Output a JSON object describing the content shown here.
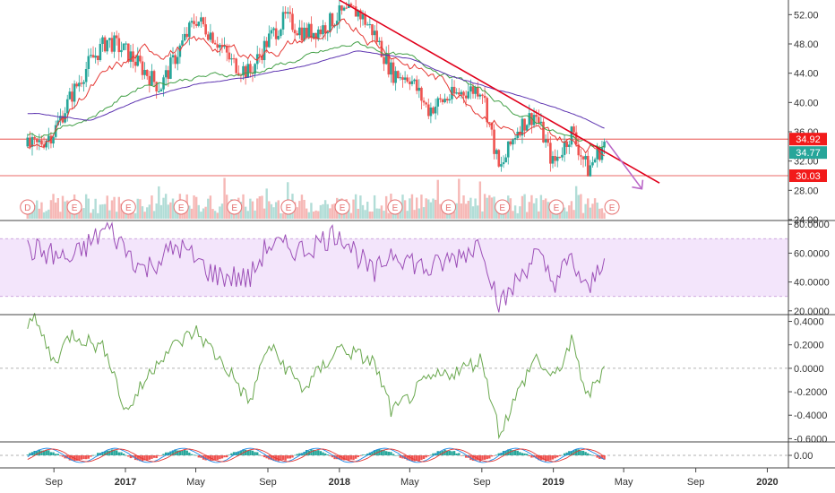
{
  "colors": {
    "up": "#26a69a",
    "down": "#ef5350",
    "ma_fast": "#e53935",
    "ma_mid": "#43a047",
    "ma_slow": "#5e35b1",
    "trendline": "#e0001b",
    "arrow": "#ba68c8",
    "rsi_line": "#9c4fb7",
    "rsi_band": "#f3e5fb",
    "momentum_line": "#6aa84f",
    "hline": "#e53935",
    "axis_text": "#333333",
    "grid_border": "#444444",
    "price_tag_red": "#f21b1b",
    "price_tag_green": "#26a69a",
    "earnings_circle": "#e57373"
  },
  "chart_data": [
    {
      "type": "candlestick",
      "panel": "price",
      "y_ticks": [
        "52.00",
        "48.00",
        "44.00",
        "40.00",
        "36.00",
        "32.00",
        "28.00",
        "24.00"
      ],
      "ylim": [
        24,
        54
      ],
      "series": [
        {
          "name": "",
          "kind": "candles",
          "x": [
            "2016-08",
            "2016-09",
            "2016-10",
            "2016-11",
            "2016-12",
            "2017-01",
            "2017-02",
            "2017-03",
            "2017-04",
            "2017-05",
            "2017-06",
            "2017-07",
            "2017-08",
            "2017-09",
            "2017-10",
            "2017-11",
            "2017-12",
            "2018-01",
            "2018-02",
            "2018-03",
            "2018-04",
            "2018-05",
            "2018-06",
            "2018-07",
            "2018-08",
            "2018-09",
            "2018-10",
            "2018-11",
            "2018-12",
            "2019-01",
            "2019-02",
            "2019-03",
            "2019-04"
          ],
          "values": [
            34.0,
            36.0,
            41.0,
            45.5,
            48.5,
            47.0,
            44.5,
            42.0,
            47.0,
            51.5,
            49.0,
            45.5,
            44.0,
            48.5,
            51.5,
            49.5,
            50.0,
            52.0,
            52.5,
            49.5,
            44.0,
            43.5,
            39.0,
            40.5,
            41.5,
            42.0,
            30.5,
            36.5,
            38.5,
            31.5,
            36.0,
            30.8,
            34.8
          ]
        },
        {
          "name": "",
          "kind": "moving_average",
          "x": [
            "2016-08",
            "2016-11",
            "2017-02",
            "2017-05",
            "2017-08",
            "2017-11",
            "2018-02",
            "2018-05",
            "2018-08",
            "2018-11",
            "2019-02",
            "2019-04"
          ],
          "values": [
            33.5,
            42.0,
            46.5,
            48.0,
            46.5,
            48.5,
            50.0,
            45.5,
            41.0,
            36.0,
            34.5,
            34.0
          ]
        },
        {
          "name": "",
          "kind": "moving_average",
          "x": [
            "2016-08",
            "2016-11",
            "2017-02",
            "2017-05",
            "2017-08",
            "2017-11",
            "2018-02",
            "2018-05",
            "2018-08",
            "2018-11",
            "2019-02",
            "2019-04"
          ],
          "values": [
            35.5,
            38.0,
            42.5,
            43.5,
            44.0,
            46.0,
            48.0,
            46.0,
            43.0,
            38.5,
            35.0,
            34.0
          ]
        },
        {
          "name": "",
          "kind": "moving_average",
          "x": [
            "2016-08",
            "2016-11",
            "2017-02",
            "2017-05",
            "2017-08",
            "2017-11",
            "2018-02",
            "2018-05",
            "2018-08",
            "2018-11",
            "2019-02",
            "2019-04"
          ],
          "values": [
            38.5,
            37.5,
            40.5,
            42.5,
            43.5,
            45.0,
            47.0,
            46.0,
            43.0,
            41.0,
            38.5,
            36.5
          ]
        }
      ],
      "trendline": {
        "x": [
          "2018-01",
          "2019-07"
        ],
        "values": [
          54.0,
          29.0
        ]
      },
      "horizontal_lines": [
        35.0,
        30.0
      ],
      "price_tags": [
        {
          "label": "34.92",
          "style": "red"
        },
        {
          "label": "34.77",
          "style": "green"
        },
        {
          "label": "30.03",
          "style": "red"
        }
      ],
      "event_markers": [
        "D",
        "E",
        "E",
        "E",
        "E",
        "E",
        "E",
        "E",
        "E",
        "E",
        "E",
        "E"
      ]
    },
    {
      "type": "line",
      "panel": "rsi",
      "y_ticks": [
        "80.0000",
        "60.0000",
        "40.0000",
        "20.0000"
      ],
      "ylim": [
        18,
        82
      ],
      "band": [
        30,
        70
      ],
      "series": [
        {
          "name": "",
          "x": [
            "2016-08",
            "2016-10",
            "2016-12",
            "2017-02",
            "2017-04",
            "2017-06",
            "2017-08",
            "2017-09",
            "2017-11",
            "2018-01",
            "2018-03",
            "2018-04",
            "2018-06",
            "2018-08",
            "2018-09",
            "2018-10",
            "2018-12",
            "2019-01",
            "2019-02",
            "2019-03",
            "2019-04"
          ],
          "values": [
            62,
            55,
            78,
            48,
            65,
            45,
            42,
            66,
            62,
            75,
            44,
            62,
            48,
            60,
            68,
            22,
            60,
            40,
            55,
            32,
            62
          ]
        }
      ]
    },
    {
      "type": "line",
      "panel": "momentum",
      "y_ticks": [
        "0.4000",
        "0.2000",
        "0.0000",
        "-0.2000",
        "-0.4000",
        "-0.6000"
      ],
      "ylim": [
        -0.62,
        0.45
      ],
      "series": [
        {
          "name": "",
          "x": [
            "2016-08",
            "2016-09",
            "2016-10",
            "2016-12",
            "2017-01",
            "2017-03",
            "2017-05",
            "2017-07",
            "2017-08",
            "2017-09",
            "2017-11",
            "2018-01",
            "2018-03",
            "2018-04",
            "2018-06",
            "2018-08",
            "2018-09",
            "2018-10",
            "2018-12",
            "2019-01",
            "2019-02",
            "2019-03",
            "2019-04"
          ],
          "values": [
            0.4,
            0.05,
            0.3,
            0.15,
            -0.38,
            0.1,
            0.32,
            -0.05,
            -0.3,
            0.2,
            -0.18,
            0.18,
            0.05,
            -0.38,
            -0.1,
            0.0,
            0.08,
            -0.55,
            0.1,
            -0.1,
            0.22,
            -0.25,
            0.05
          ]
        }
      ]
    },
    {
      "type": "histogram",
      "panel": "macd",
      "y_ticks": [
        "0.00"
      ],
      "ylim": [
        -0.8,
        0.8
      ]
    }
  ],
  "x_axis": {
    "labels": [
      "Sep",
      "2017",
      "May",
      "Sep",
      "2018",
      "May",
      "Sep",
      "2019",
      "May",
      "Sep",
      "2020"
    ],
    "dates": [
      "2016-09",
      "2017-01",
      "2017-05",
      "2017-09",
      "2018-01",
      "2018-05",
      "2018-09",
      "2019-01",
      "2019-05",
      "2019-09",
      "2020-01"
    ]
  }
}
